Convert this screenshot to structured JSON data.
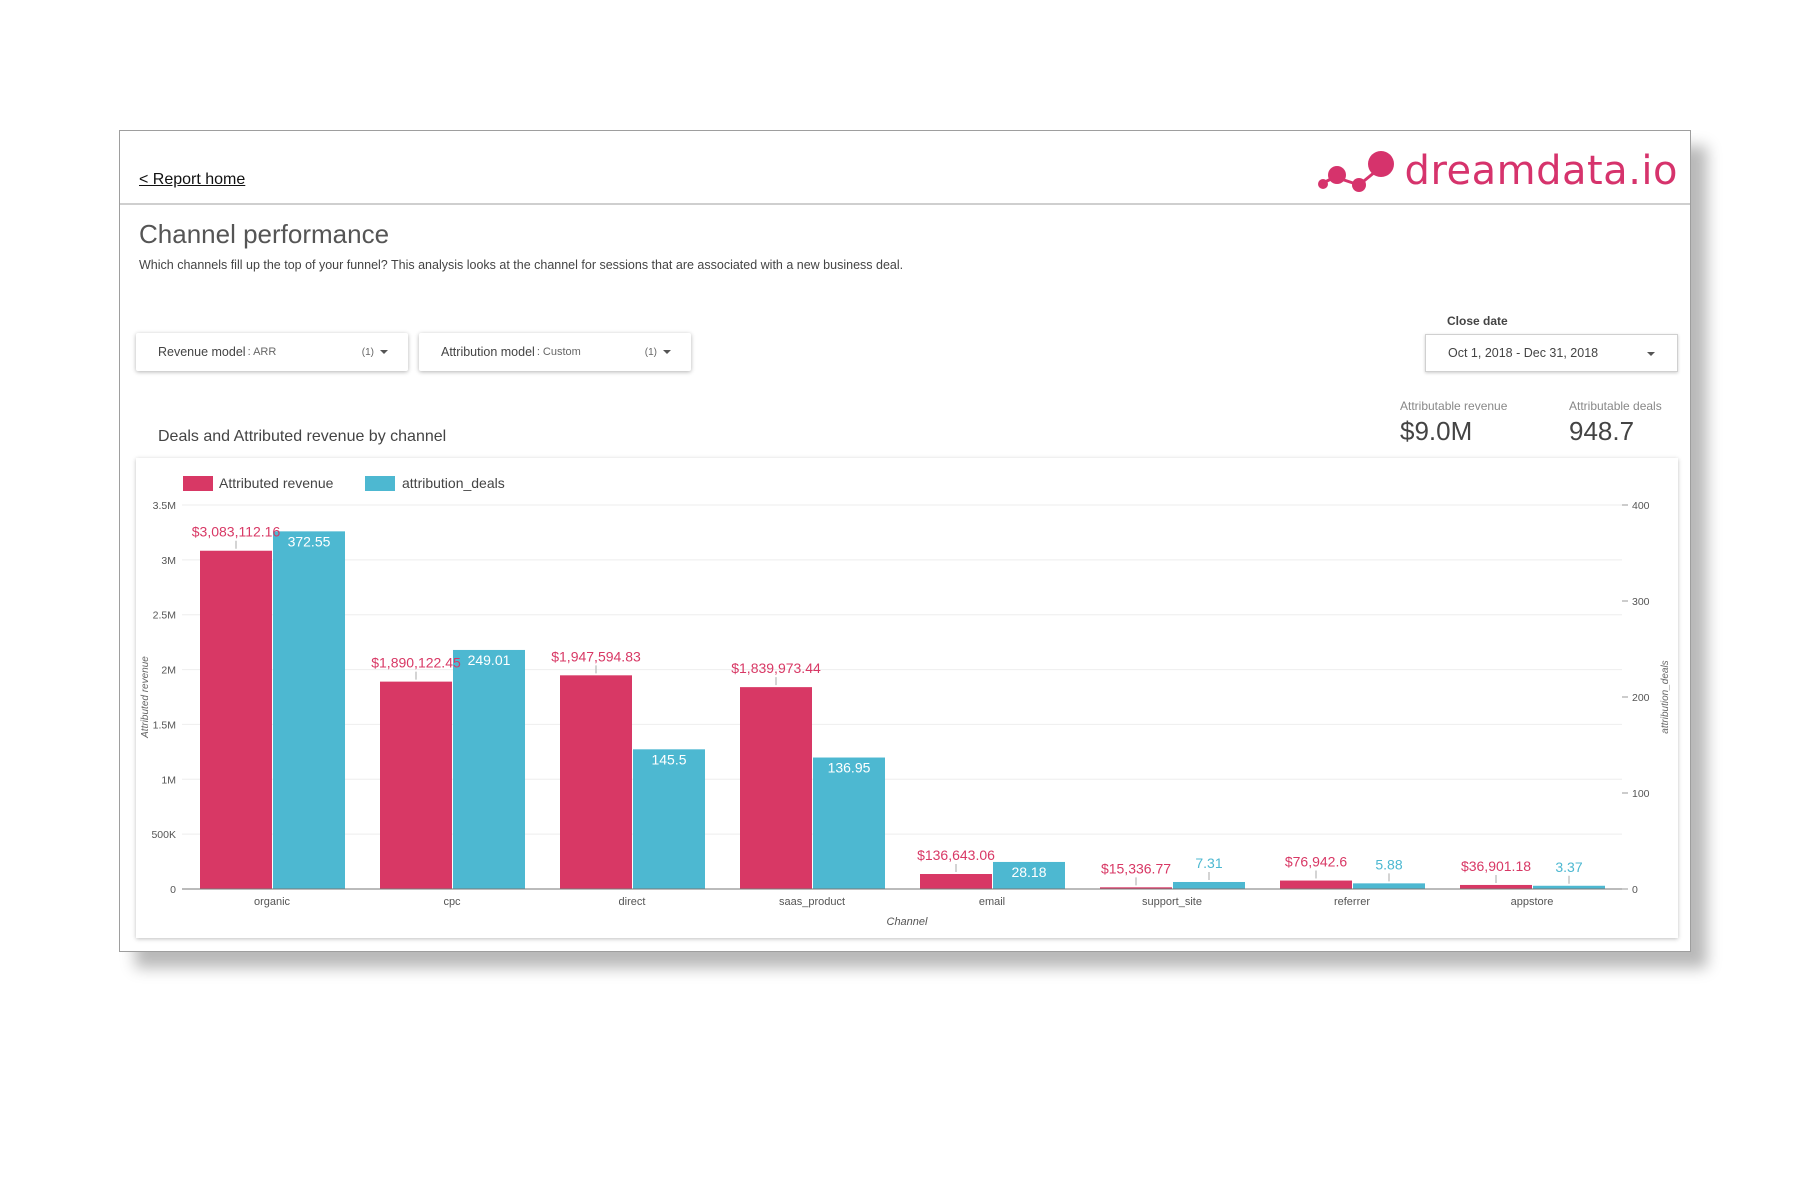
{
  "header": {
    "home_link": "< Report home",
    "brand_name": "dreamdata.io"
  },
  "page": {
    "title": "Channel performance",
    "description": "Which channels fill up the top of your funnel? This analysis looks at the channel for sessions that are associated with a new business deal."
  },
  "filters": {
    "revenue_model": {
      "label": "Revenue model",
      "value": ": ARR",
      "count": "(1)"
    },
    "attribution_model": {
      "label": "Attribution model",
      "value": ": Custom",
      "count": "(1)"
    },
    "close_date": {
      "label": "Close date",
      "value": "Oct 1, 2018 - Dec 31, 2018"
    }
  },
  "kpis": [
    {
      "label": "Attributable revenue",
      "value": "$9.0M"
    },
    {
      "label": "Attributable deals",
      "value": "948.7"
    }
  ],
  "colors": {
    "revenue": "#d83865",
    "deals": "#4db8d1",
    "brand": "#d6336c"
  },
  "chart_data": {
    "type": "bar",
    "title": "Deals and Attributed revenue by channel",
    "xlabel": "Channel",
    "ylabel": "Attributed revenue",
    "y2label": "attribution_deals",
    "categories": [
      "organic",
      "cpc",
      "direct",
      "saas_product",
      "email",
      "support_site",
      "referrer",
      "appstore"
    ],
    "series": [
      {
        "name": "Attributed revenue",
        "axis": "left",
        "values": [
          3083112.16,
          1890122.45,
          1947594.83,
          1839973.44,
          136643.06,
          15336.77,
          76942.6,
          36901.18
        ],
        "labels": [
          "$3,083,112.16",
          "$1,890,122.45",
          "$1,947,594.83",
          "$1,839,973.44",
          "$136,643.06",
          "$15,336.77",
          "$76,942.6",
          "$36,901.18"
        ]
      },
      {
        "name": "attribution_deals",
        "axis": "right",
        "values": [
          372.55,
          249.01,
          145.5,
          136.95,
          28.18,
          7.31,
          5.88,
          3.37
        ],
        "labels": [
          "372.55",
          "249.01",
          "145.5",
          "136.95",
          "28.18",
          "7.31",
          "5.88",
          "3.37"
        ]
      }
    ],
    "ylim": [
      0,
      3500000
    ],
    "y2lim": [
      0,
      400
    ],
    "yticks": [
      "0",
      "500K",
      "1M",
      "1.5M",
      "2M",
      "2.5M",
      "3M",
      "3.5M"
    ],
    "y2ticks": [
      "0",
      "100",
      "200",
      "300",
      "400"
    ],
    "legend_position": "top-left",
    "grid": true
  }
}
